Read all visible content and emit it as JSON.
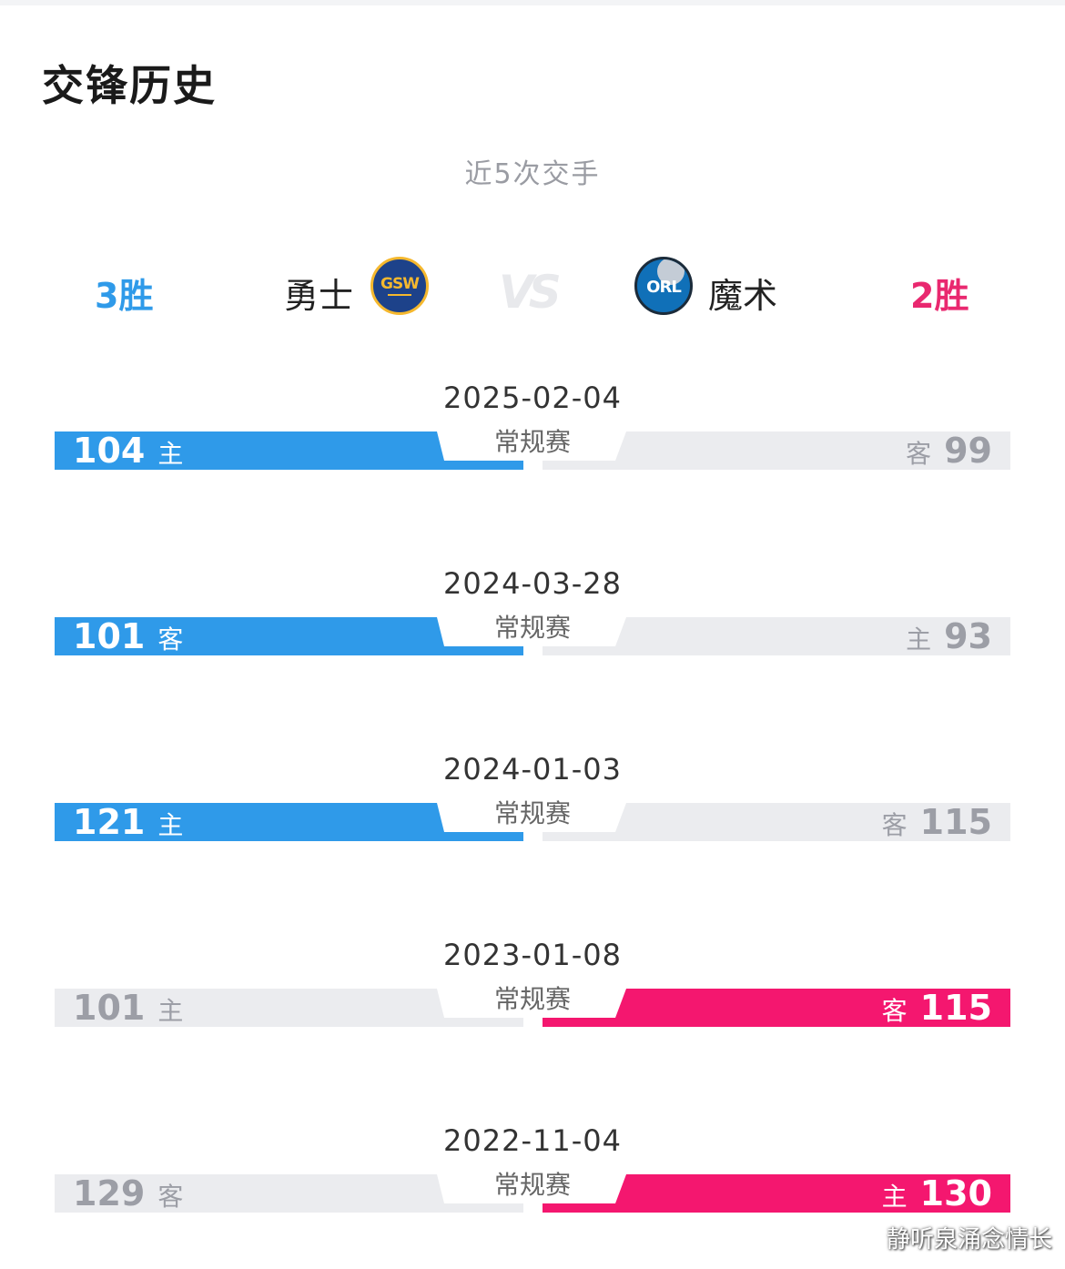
{
  "header": {
    "title": "交锋历史",
    "subtitle": "近5次交手"
  },
  "summary": {
    "left": {
      "wins": "3胜",
      "team": "勇士",
      "logo_text": "GSW",
      "logo_icon": "warriors-logo"
    },
    "vs": "VS",
    "right": {
      "wins": "2胜",
      "team": "魔术",
      "logo_text": "ORL",
      "logo_icon": "magic-logo"
    }
  },
  "colors": {
    "left_win": "#2f9ae9",
    "right_win": "#f4176f",
    "loss": "#ebecef"
  },
  "games": [
    {
      "date": "2025-02-04",
      "type": "常规赛",
      "left": {
        "score": "104",
        "tag": "主"
      },
      "right": {
        "score": "99",
        "tag": "客"
      },
      "winner": "left"
    },
    {
      "date": "2024-03-28",
      "type": "常规赛",
      "left": {
        "score": "101",
        "tag": "客"
      },
      "right": {
        "score": "93",
        "tag": "主"
      },
      "winner": "left"
    },
    {
      "date": "2024-01-03",
      "type": "常规赛",
      "left": {
        "score": "121",
        "tag": "主"
      },
      "right": {
        "score": "115",
        "tag": "客"
      },
      "winner": "left"
    },
    {
      "date": "2023-01-08",
      "type": "常规赛",
      "left": {
        "score": "101",
        "tag": "主"
      },
      "right": {
        "score": "115",
        "tag": "客"
      },
      "winner": "right"
    },
    {
      "date": "2022-11-04",
      "type": "常规赛",
      "left": {
        "score": "129",
        "tag": "客"
      },
      "right": {
        "score": "130",
        "tag": "主"
      },
      "winner": "right"
    }
  ],
  "watermark": "静听泉涌念情长"
}
